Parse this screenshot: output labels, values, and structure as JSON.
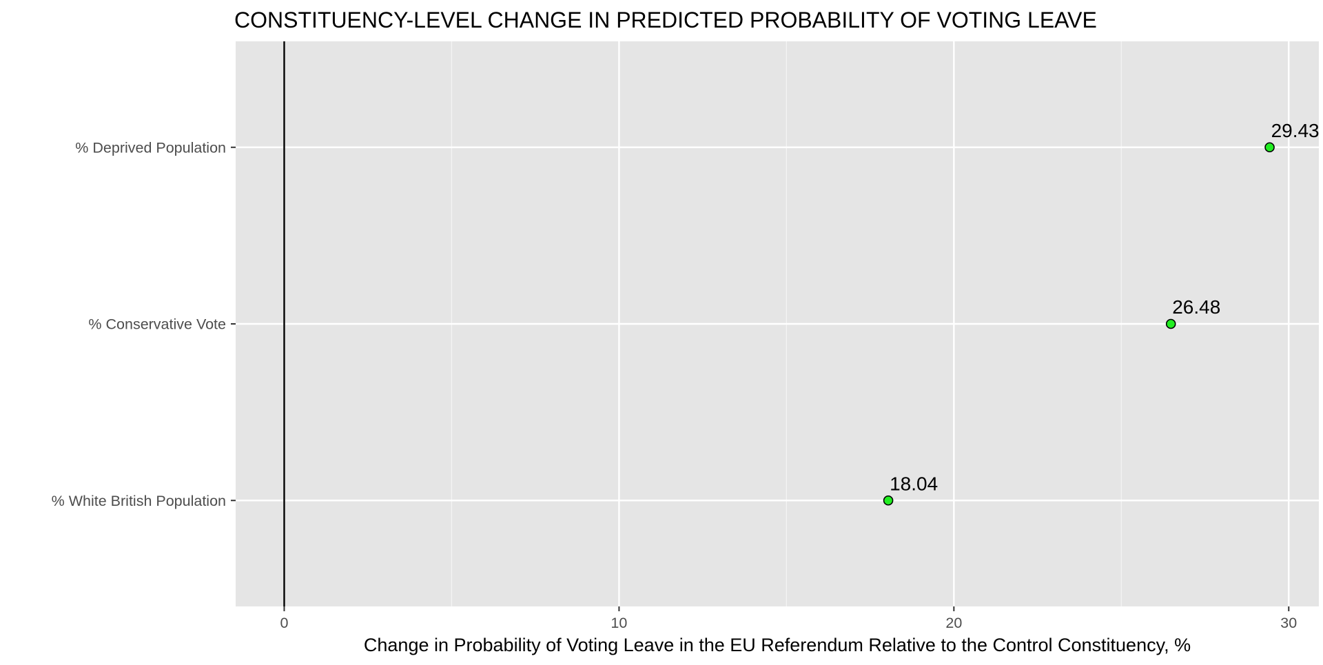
{
  "chart_data": {
    "type": "scatter",
    "title": "CONSTITUENCY-LEVEL CHANGE IN PREDICTED PROBABILITY OF VOTING LEAVE",
    "xlabel": "Change in Probability of Voting Leave in the EU Referendum Relative to the Control Constituency, %",
    "ylabel": "",
    "xlim": [
      -1.45,
      30.9
    ],
    "x_ticks": [
      0,
      10,
      20,
      30
    ],
    "x_tick_labels": [
      "0",
      "10",
      "20",
      "30"
    ],
    "categories": [
      "% White British Population",
      "% Conservative Vote",
      "% Deprived Population"
    ],
    "values": [
      18.04,
      26.48,
      29.43
    ],
    "data_labels": [
      "18.04",
      "26.48",
      "29.43"
    ],
    "reference_line_x": 0,
    "grid": true,
    "legend": "none",
    "colors": {
      "panel_background": "#e5e5e5",
      "grid_major": "#ffffff",
      "point_fill": "#22ee22",
      "point_stroke": "#000000",
      "reference_line": "#000000",
      "tick_text": "#4d4d4d"
    }
  }
}
